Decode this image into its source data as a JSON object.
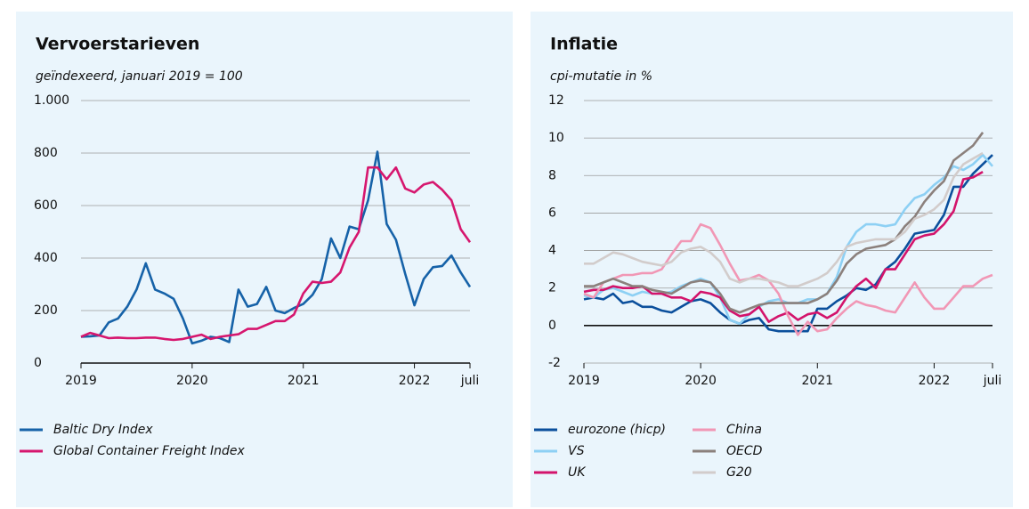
{
  "chart_data": [
    {
      "type": "line",
      "title": "Vervoerstarieven",
      "subtitle": "geïndexeerd, januari 2019 = 100",
      "categories": [
        "2019",
        null,
        null,
        null,
        null,
        null,
        null,
        null,
        null,
        null,
        null,
        null,
        "2020",
        null,
        null,
        null,
        null,
        null,
        null,
        null,
        null,
        null,
        null,
        null,
        "2021",
        null,
        null,
        null,
        null,
        null,
        null,
        null,
        null,
        null,
        null,
        null,
        "2022",
        null,
        null,
        null,
        null,
        null,
        "juli"
      ],
      "ylim": [
        0,
        1000
      ],
      "yticks": [
        0,
        200,
        400,
        600,
        800,
        {
          "value": 1000,
          "label": "1.000"
        }
      ],
      "grid": true,
      "series": [
        {
          "name": "Baltic Dry Index",
          "color": "#1662a8",
          "values": [
            100,
            102,
            105,
            155,
            170,
            215,
            280,
            380,
            280,
            265,
            245,
            170,
            75,
            85,
            100,
            95,
            80,
            280,
            215,
            225,
            290,
            200,
            190,
            210,
            225,
            260,
            320,
            475,
            400,
            520,
            510,
            620,
            805,
            530,
            470,
            340,
            220,
            320,
            365,
            370,
            410,
            345,
            290
          ]
        },
        {
          "name": "Global Container Freight Index",
          "color": "#d6166e",
          "values": [
            100,
            115,
            105,
            95,
            97,
            95,
            95,
            97,
            97,
            92,
            88,
            92,
            100,
            108,
            92,
            100,
            105,
            110,
            130,
            130,
            145,
            160,
            160,
            185,
            265,
            310,
            305,
            310,
            345,
            440,
            500,
            745,
            745,
            700,
            745,
            665,
            650,
            680,
            690,
            660,
            620,
            510,
            460
          ]
        }
      ]
    },
    {
      "type": "line",
      "title": "Inflatie",
      "subtitle": "cpi-mutatie in %",
      "categories": [
        "2019",
        null,
        null,
        null,
        null,
        null,
        null,
        null,
        null,
        null,
        null,
        null,
        "2020",
        null,
        null,
        null,
        null,
        null,
        null,
        null,
        null,
        null,
        null,
        null,
        "2021",
        null,
        null,
        null,
        null,
        null,
        null,
        null,
        null,
        null,
        null,
        null,
        "2022",
        null,
        null,
        null,
        null,
        null,
        "juli"
      ],
      "ylim": [
        -2,
        12
      ],
      "yticks": [
        -2,
        0,
        2,
        4,
        6,
        8,
        10,
        12
      ],
      "grid": true,
      "series": [
        {
          "name": "eurozone (hicp)",
          "color": "#0b4f9c",
          "values": [
            1.4,
            1.5,
            1.4,
            1.7,
            1.2,
            1.3,
            1.0,
            1.0,
            0.8,
            0.7,
            1.0,
            1.3,
            1.4,
            1.2,
            0.7,
            0.3,
            0.1,
            0.3,
            0.4,
            -0.2,
            -0.3,
            -0.3,
            -0.3,
            -0.3,
            0.9,
            0.9,
            1.3,
            1.6,
            2.0,
            1.9,
            2.2,
            3.0,
            3.4,
            4.1,
            4.9,
            5.0,
            5.1,
            5.9,
            7.4,
            7.4,
            8.1,
            8.6,
            9.1
          ]
        },
        {
          "name": "VS",
          "color": "#8dd0f4",
          "values": [
            1.6,
            1.5,
            1.9,
            2.0,
            1.8,
            1.6,
            1.8,
            1.7,
            1.7,
            1.8,
            2.1,
            2.3,
            2.5,
            2.3,
            1.5,
            0.3,
            0.1,
            0.6,
            1.0,
            1.3,
            1.4,
            1.2,
            1.2,
            1.4,
            1.4,
            1.7,
            2.6,
            4.2,
            5.0,
            5.4,
            5.4,
            5.3,
            5.4,
            6.2,
            6.8,
            7.0,
            7.5,
            7.9,
            8.5,
            8.3,
            8.6,
            9.1,
            8.5
          ]
        },
        {
          "name": "UK",
          "color": "#d3136b",
          "values": [
            1.8,
            1.9,
            1.9,
            2.1,
            2.0,
            2.0,
            2.1,
            1.7,
            1.7,
            1.5,
            1.5,
            1.3,
            1.8,
            1.7,
            1.5,
            0.8,
            0.5,
            0.6,
            1.0,
            0.2,
            0.5,
            0.7,
            0.3,
            0.6,
            0.7,
            0.4,
            0.7,
            1.5,
            2.1,
            2.5,
            2.0,
            3.0,
            3.0,
            3.8,
            4.6,
            4.8,
            4.9,
            5.4,
            6.1,
            7.8,
            7.9,
            8.2,
            null
          ]
        },
        {
          "name": "China",
          "color": "#f197b5",
          "values": [
            1.7,
            1.5,
            2.3,
            2.5,
            2.7,
            2.7,
            2.8,
            2.8,
            3.0,
            3.8,
            4.5,
            4.5,
            5.4,
            5.2,
            4.3,
            3.3,
            2.4,
            2.5,
            2.7,
            2.4,
            1.7,
            0.5,
            -0.5,
            0.2,
            -0.3,
            -0.2,
            0.4,
            0.9,
            1.3,
            1.1,
            1.0,
            0.8,
            0.7,
            1.5,
            2.3,
            1.5,
            0.9,
            0.9,
            1.5,
            2.1,
            2.1,
            2.5,
            2.7
          ]
        },
        {
          "name": "OECD",
          "color": "#8b807c",
          "values": [
            2.1,
            2.1,
            2.3,
            2.5,
            2.3,
            2.1,
            2.1,
            1.9,
            1.8,
            1.7,
            2.0,
            2.3,
            2.4,
            2.3,
            1.7,
            0.9,
            0.7,
            0.9,
            1.1,
            1.2,
            1.2,
            1.2,
            1.2,
            1.2,
            1.4,
            1.7,
            2.4,
            3.3,
            3.8,
            4.1,
            4.2,
            4.3,
            4.6,
            5.3,
            5.8,
            6.6,
            7.2,
            7.7,
            8.8,
            9.2,
            9.6,
            10.3,
            null
          ]
        },
        {
          "name": "G20",
          "color": "#d2cccb",
          "values": [
            3.3,
            3.3,
            3.6,
            3.9,
            3.8,
            3.6,
            3.4,
            3.3,
            3.2,
            3.4,
            3.9,
            4.1,
            4.2,
            3.9,
            3.4,
            2.5,
            2.3,
            2.5,
            2.5,
            2.4,
            2.3,
            2.1,
            2.1,
            2.3,
            2.5,
            2.8,
            3.4,
            4.2,
            4.4,
            4.5,
            4.6,
            4.6,
            4.6,
            5.0,
            5.7,
            5.9,
            6.2,
            6.7,
            7.9,
            8.6,
            8.9,
            9.2,
            null
          ]
        }
      ]
    }
  ]
}
